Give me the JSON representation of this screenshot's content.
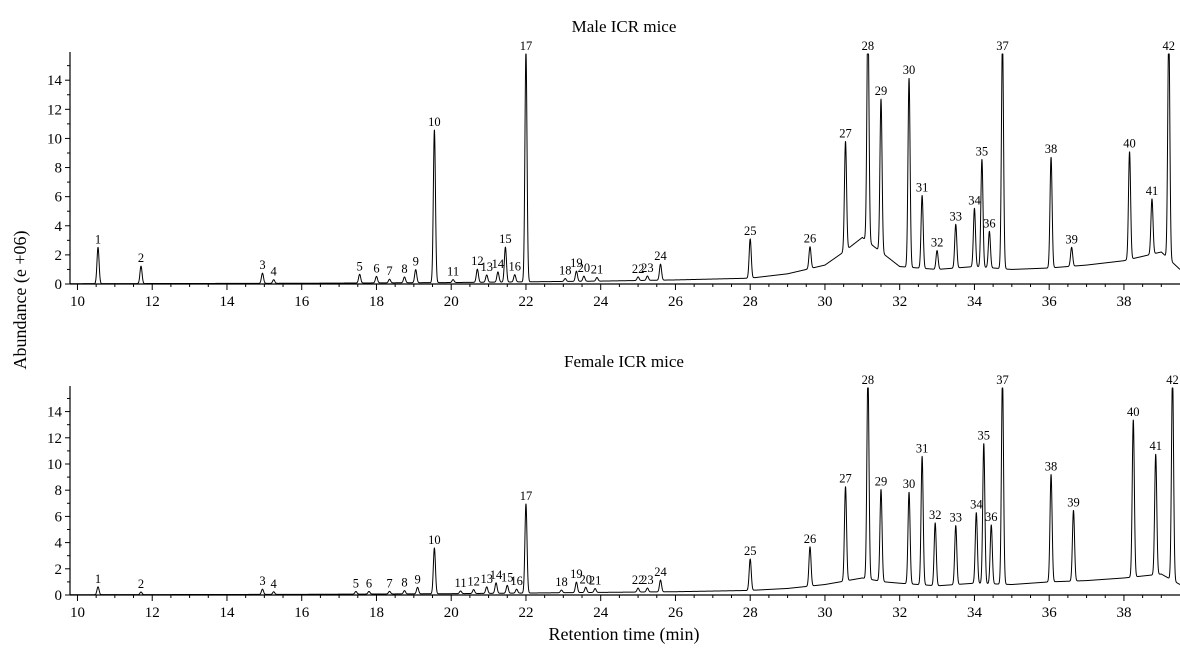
{
  "chart_data": {
    "type": "line",
    "xlabel": "Retention time (min)",
    "ylabel": "Abundance (e +06)",
    "xlim": [
      9.8,
      39.5
    ],
    "x_ticks": [
      10,
      12,
      14,
      16,
      18,
      20,
      22,
      24,
      26,
      28,
      30,
      32,
      34,
      36,
      38
    ],
    "ylim": [
      0,
      15.8
    ],
    "y_ticks": [
      0,
      2,
      4,
      6,
      8,
      10,
      12,
      14
    ],
    "grid": false,
    "panels": [
      {
        "title": "Male ICR mice",
        "baseline": [
          [
            9.8,
            0.02
          ],
          [
            16,
            0.05
          ],
          [
            20,
            0.1
          ],
          [
            24,
            0.2
          ],
          [
            26,
            0.28
          ],
          [
            28,
            0.4
          ],
          [
            29,
            0.7
          ],
          [
            30,
            1.3
          ],
          [
            30.5,
            2.2
          ],
          [
            31,
            3.2
          ],
          [
            31.6,
            2.0
          ],
          [
            32,
            1.2
          ],
          [
            33,
            1.0
          ],
          [
            34,
            1.2
          ],
          [
            35,
            1.0
          ],
          [
            36,
            1.1
          ],
          [
            37,
            1.3
          ],
          [
            38,
            1.6
          ],
          [
            39,
            2.2
          ],
          [
            39.5,
            1.0
          ]
        ],
        "peaks": [
          {
            "label": "1",
            "rt": 10.55,
            "height": 2.5
          },
          {
            "label": "2",
            "rt": 11.7,
            "height": 1.2
          },
          {
            "label": "3",
            "rt": 14.95,
            "height": 0.7
          },
          {
            "label": "4",
            "rt": 15.25,
            "height": 0.25
          },
          {
            "label": "5",
            "rt": 17.55,
            "height": 0.6
          },
          {
            "label": "6",
            "rt": 18.0,
            "height": 0.45
          },
          {
            "label": "7",
            "rt": 18.35,
            "height": 0.25
          },
          {
            "label": "8",
            "rt": 18.75,
            "height": 0.4
          },
          {
            "label": "9",
            "rt": 19.05,
            "height": 0.9
          },
          {
            "label": "10",
            "rt": 19.55,
            "height": 10.5
          },
          {
            "label": "11",
            "rt": 20.05,
            "height": 0.2
          },
          {
            "label": "12",
            "rt": 20.7,
            "height": 0.9
          },
          {
            "label": "13",
            "rt": 20.95,
            "height": 0.5
          },
          {
            "label": "14",
            "rt": 21.25,
            "height": 0.7
          },
          {
            "label": "15",
            "rt": 21.45,
            "height": 2.4
          },
          {
            "label": "16",
            "rt": 21.7,
            "height": 0.5
          },
          {
            "label": "17",
            "rt": 22.0,
            "height": 15.8
          },
          {
            "label": "18",
            "rt": 23.05,
            "height": 0.2
          },
          {
            "label": "19",
            "rt": 23.35,
            "height": 0.7
          },
          {
            "label": "20",
            "rt": 23.55,
            "height": 0.35
          },
          {
            "label": "21",
            "rt": 23.9,
            "height": 0.25
          },
          {
            "label": "22",
            "rt": 25.0,
            "height": 0.25
          },
          {
            "label": "23",
            "rt": 25.25,
            "height": 0.3
          },
          {
            "label": "24",
            "rt": 25.6,
            "height": 1.1
          },
          {
            "label": "25",
            "rt": 28.0,
            "height": 2.7
          },
          {
            "label": "26",
            "rt": 29.6,
            "height": 1.5
          },
          {
            "label": "27",
            "rt": 30.55,
            "height": 7.5
          },
          {
            "label": "28",
            "rt": 31.15,
            "height": 15.8
          },
          {
            "label": "29",
            "rt": 31.5,
            "height": 10.5
          },
          {
            "label": "30",
            "rt": 32.25,
            "height": 13.0
          },
          {
            "label": "31",
            "rt": 32.6,
            "height": 5.0
          },
          {
            "label": "32",
            "rt": 33.0,
            "height": 1.3
          },
          {
            "label": "33",
            "rt": 33.5,
            "height": 3.0
          },
          {
            "label": "34",
            "rt": 34.0,
            "height": 4.0
          },
          {
            "label": "35",
            "rt": 34.2,
            "height": 7.4
          },
          {
            "label": "36",
            "rt": 34.4,
            "height": 2.5
          },
          {
            "label": "37",
            "rt": 34.75,
            "height": 15.8
          },
          {
            "label": "38",
            "rt": 36.05,
            "height": 7.6
          },
          {
            "label": "39",
            "rt": 36.6,
            "height": 1.3
          },
          {
            "label": "40",
            "rt": 38.15,
            "height": 7.4
          },
          {
            "label": "41",
            "rt": 38.75,
            "height": 3.8
          },
          {
            "label": "42",
            "rt": 39.2,
            "height": 15.8
          }
        ]
      },
      {
        "title": "Female ICR mice",
        "baseline": [
          [
            9.8,
            0.02
          ],
          [
            16,
            0.05
          ],
          [
            20,
            0.1
          ],
          [
            24,
            0.2
          ],
          [
            26,
            0.25
          ],
          [
            28,
            0.35
          ],
          [
            29,
            0.5
          ],
          [
            30,
            0.8
          ],
          [
            31,
            1.3
          ],
          [
            31.6,
            1.0
          ],
          [
            32,
            0.9
          ],
          [
            33,
            0.7
          ],
          [
            34,
            0.9
          ],
          [
            35,
            0.8
          ],
          [
            36,
            1.0
          ],
          [
            37,
            1.1
          ],
          [
            38,
            1.3
          ],
          [
            39,
            1.6
          ],
          [
            39.5,
            0.8
          ]
        ],
        "peaks": [
          {
            "label": "1",
            "rt": 10.55,
            "height": 0.6
          },
          {
            "label": "2",
            "rt": 11.7,
            "height": 0.2
          },
          {
            "label": "3",
            "rt": 14.95,
            "height": 0.4
          },
          {
            "label": "4",
            "rt": 15.25,
            "height": 0.2
          },
          {
            "label": "5",
            "rt": 17.45,
            "height": 0.2
          },
          {
            "label": "6",
            "rt": 17.8,
            "height": 0.2
          },
          {
            "label": "7",
            "rt": 18.35,
            "height": 0.2
          },
          {
            "label": "8",
            "rt": 18.75,
            "height": 0.25
          },
          {
            "label": "9",
            "rt": 19.1,
            "height": 0.5
          },
          {
            "label": "10",
            "rt": 19.55,
            "height": 3.5
          },
          {
            "label": "11",
            "rt": 20.25,
            "height": 0.2
          },
          {
            "label": "12",
            "rt": 20.6,
            "height": 0.3
          },
          {
            "label": "13",
            "rt": 20.95,
            "height": 0.5
          },
          {
            "label": "14",
            "rt": 21.2,
            "height": 0.8
          },
          {
            "label": "15",
            "rt": 21.5,
            "height": 0.6
          },
          {
            "label": "16",
            "rt": 21.75,
            "height": 0.3
          },
          {
            "label": "17",
            "rt": 22.0,
            "height": 6.8
          },
          {
            "label": "18",
            "rt": 22.95,
            "height": 0.2
          },
          {
            "label": "19",
            "rt": 23.35,
            "height": 0.8
          },
          {
            "label": "20",
            "rt": 23.6,
            "height": 0.4
          },
          {
            "label": "21",
            "rt": 23.85,
            "height": 0.3
          },
          {
            "label": "22",
            "rt": 25.0,
            "height": 0.3
          },
          {
            "label": "23",
            "rt": 25.25,
            "height": 0.3
          },
          {
            "label": "24",
            "rt": 25.6,
            "height": 0.9
          },
          {
            "label": "25",
            "rt": 28.0,
            "height": 2.4
          },
          {
            "label": "26",
            "rt": 29.6,
            "height": 3.0
          },
          {
            "label": "27",
            "rt": 30.55,
            "height": 7.2
          },
          {
            "label": "28",
            "rt": 31.15,
            "height": 15.8
          },
          {
            "label": "29",
            "rt": 31.5,
            "height": 7.0
          },
          {
            "label": "30",
            "rt": 32.25,
            "height": 7.0
          },
          {
            "label": "31",
            "rt": 32.6,
            "height": 9.8
          },
          {
            "label": "32",
            "rt": 32.95,
            "height": 4.8
          },
          {
            "label": "33",
            "rt": 33.5,
            "height": 4.5
          },
          {
            "label": "34",
            "rt": 34.05,
            "height": 5.4
          },
          {
            "label": "35",
            "rt": 34.25,
            "height": 10.7
          },
          {
            "label": "36",
            "rt": 34.45,
            "height": 4.5
          },
          {
            "label": "37",
            "rt": 34.75,
            "height": 15.8
          },
          {
            "label": "38",
            "rt": 36.05,
            "height": 8.2
          },
          {
            "label": "39",
            "rt": 36.65,
            "height": 5.4
          },
          {
            "label": "40",
            "rt": 38.25,
            "height": 12.0
          },
          {
            "label": "41",
            "rt": 38.85,
            "height": 9.2
          },
          {
            "label": "42",
            "rt": 39.3,
            "height": 15.8
          }
        ]
      }
    ]
  }
}
